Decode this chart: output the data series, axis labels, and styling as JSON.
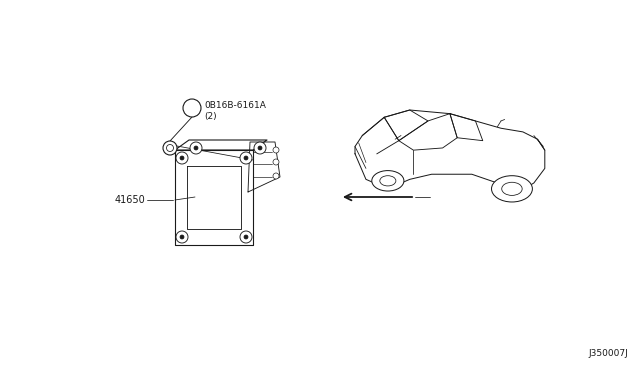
{
  "bg_color": "#ffffff",
  "line_color": "#1a1a1a",
  "part_label_1": "0B16B-6161A",
  "part_label_1b": "(2)",
  "part_label_2": "41650",
  "diagram_id": "J350007J",
  "figsize": [
    6.4,
    3.72
  ],
  "dpi": 100
}
